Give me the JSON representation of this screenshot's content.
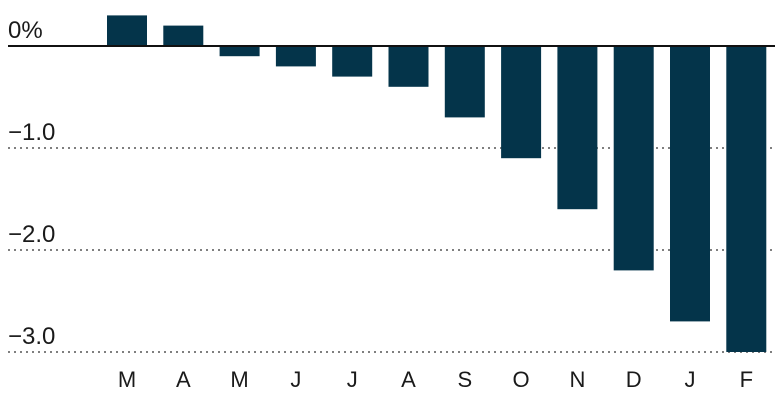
{
  "chart_data": {
    "type": "bar",
    "categories": [
      "M",
      "A",
      "M",
      "J",
      "J",
      "A",
      "S",
      "O",
      "N",
      "D",
      "J",
      "F"
    ],
    "values": [
      0.3,
      0.2,
      -0.1,
      -0.2,
      -0.3,
      -0.4,
      -0.7,
      -1.1,
      -1.6,
      -2.2,
      -2.7,
      -3.0
    ],
    "y_ticks": [
      {
        "value": 0,
        "label": "0%"
      },
      {
        "value": -1,
        "label": "−1.0"
      },
      {
        "value": -2,
        "label": "−2.0"
      },
      {
        "value": -3,
        "label": "−3.0"
      }
    ],
    "ylim": [
      -3.0,
      0.3
    ],
    "grid": "dotted horizontal at negative ticks",
    "title": "",
    "xlabel": "",
    "ylabel": "",
    "bar_color": "#04344a"
  }
}
